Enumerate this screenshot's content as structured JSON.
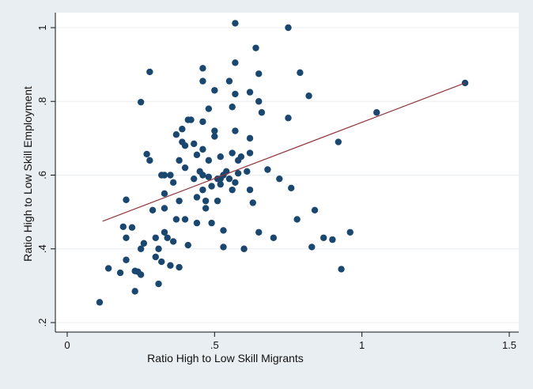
{
  "chart_data": {
    "type": "scatter",
    "xlabel": "Ratio High to Low Skill Migrants",
    "ylabel": "Ratio High to Low Skill Employment",
    "xlim": [
      0,
      1.5
    ],
    "ylim": [
      0.2,
      1.0
    ],
    "x_ticks": [
      0,
      0.5,
      1,
      1.5
    ],
    "x_tick_labels": [
      "0",
      ".5",
      "1",
      "1.5"
    ],
    "y_ticks": [
      0.2,
      0.4,
      0.6,
      0.8,
      1.0
    ],
    "y_tick_labels": [
      ".2",
      ".4",
      ".6",
      ".8",
      "1"
    ],
    "grid": "horizontal",
    "fit_line": {
      "x": [
        0.12,
        1.35
      ],
      "y": [
        0.475,
        0.85
      ]
    },
    "colors": {
      "points": "#1a476f",
      "fit_line": "#90353b",
      "plot_bg": "#ffffff",
      "outer_bg": "#e9eef2"
    },
    "points": [
      {
        "x": 0.11,
        "y": 0.255
      },
      {
        "x": 0.14,
        "y": 0.347
      },
      {
        "x": 0.18,
        "y": 0.335
      },
      {
        "x": 0.19,
        "y": 0.46
      },
      {
        "x": 0.2,
        "y": 0.43
      },
      {
        "x": 0.2,
        "y": 0.533
      },
      {
        "x": 0.2,
        "y": 0.37
      },
      {
        "x": 0.22,
        "y": 0.458
      },
      {
        "x": 0.23,
        "y": 0.285
      },
      {
        "x": 0.23,
        "y": 0.34
      },
      {
        "x": 0.24,
        "y": 0.338
      },
      {
        "x": 0.25,
        "y": 0.33
      },
      {
        "x": 0.25,
        "y": 0.4
      },
      {
        "x": 0.25,
        "y": 0.798
      },
      {
        "x": 0.26,
        "y": 0.415
      },
      {
        "x": 0.27,
        "y": 0.657
      },
      {
        "x": 0.28,
        "y": 0.88
      },
      {
        "x": 0.28,
        "y": 0.64
      },
      {
        "x": 0.29,
        "y": 0.505
      },
      {
        "x": 0.3,
        "y": 0.378
      },
      {
        "x": 0.3,
        "y": 0.43
      },
      {
        "x": 0.31,
        "y": 0.305
      },
      {
        "x": 0.31,
        "y": 0.4
      },
      {
        "x": 0.32,
        "y": 0.6
      },
      {
        "x": 0.32,
        "y": 0.365
      },
      {
        "x": 0.33,
        "y": 0.6
      },
      {
        "x": 0.33,
        "y": 0.55
      },
      {
        "x": 0.33,
        "y": 0.51
      },
      {
        "x": 0.33,
        "y": 0.445
      },
      {
        "x": 0.34,
        "y": 0.43
      },
      {
        "x": 0.35,
        "y": 0.6
      },
      {
        "x": 0.35,
        "y": 0.355
      },
      {
        "x": 0.36,
        "y": 0.58
      },
      {
        "x": 0.36,
        "y": 0.42
      },
      {
        "x": 0.37,
        "y": 0.71
      },
      {
        "x": 0.37,
        "y": 0.48
      },
      {
        "x": 0.38,
        "y": 0.64
      },
      {
        "x": 0.38,
        "y": 0.53
      },
      {
        "x": 0.38,
        "y": 0.35
      },
      {
        "x": 0.39,
        "y": 0.725
      },
      {
        "x": 0.39,
        "y": 0.69
      },
      {
        "x": 0.4,
        "y": 0.68
      },
      {
        "x": 0.4,
        "y": 0.62
      },
      {
        "x": 0.4,
        "y": 0.48
      },
      {
        "x": 0.41,
        "y": 0.75
      },
      {
        "x": 0.41,
        "y": 0.41
      },
      {
        "x": 0.42,
        "y": 0.75
      },
      {
        "x": 0.43,
        "y": 0.685
      },
      {
        "x": 0.43,
        "y": 0.59
      },
      {
        "x": 0.44,
        "y": 0.655
      },
      {
        "x": 0.44,
        "y": 0.54
      },
      {
        "x": 0.44,
        "y": 0.47
      },
      {
        "x": 0.45,
        "y": 0.61
      },
      {
        "x": 0.46,
        "y": 0.89
      },
      {
        "x": 0.46,
        "y": 0.855
      },
      {
        "x": 0.46,
        "y": 0.745
      },
      {
        "x": 0.46,
        "y": 0.67
      },
      {
        "x": 0.46,
        "y": 0.6
      },
      {
        "x": 0.46,
        "y": 0.56
      },
      {
        "x": 0.47,
        "y": 0.53
      },
      {
        "x": 0.47,
        "y": 0.51
      },
      {
        "x": 0.48,
        "y": 0.78
      },
      {
        "x": 0.48,
        "y": 0.64
      },
      {
        "x": 0.48,
        "y": 0.595
      },
      {
        "x": 0.49,
        "y": 0.57
      },
      {
        "x": 0.49,
        "y": 0.47
      },
      {
        "x": 0.5,
        "y": 0.83
      },
      {
        "x": 0.5,
        "y": 0.72
      },
      {
        "x": 0.5,
        "y": 0.705
      },
      {
        "x": 0.51,
        "y": 0.59
      },
      {
        "x": 0.51,
        "y": 0.53
      },
      {
        "x": 0.52,
        "y": 0.65
      },
      {
        "x": 0.52,
        "y": 0.59
      },
      {
        "x": 0.52,
        "y": 0.575
      },
      {
        "x": 0.53,
        "y": 0.6
      },
      {
        "x": 0.53,
        "y": 0.45
      },
      {
        "x": 0.53,
        "y": 0.405
      },
      {
        "x": 0.54,
        "y": 0.61
      },
      {
        "x": 0.55,
        "y": 0.59
      },
      {
        "x": 0.55,
        "y": 0.855
      },
      {
        "x": 0.56,
        "y": 0.56
      },
      {
        "x": 0.56,
        "y": 0.785
      },
      {
        "x": 0.56,
        "y": 0.66
      },
      {
        "x": 0.57,
        "y": 1.012
      },
      {
        "x": 0.57,
        "y": 0.905
      },
      {
        "x": 0.57,
        "y": 0.82
      },
      {
        "x": 0.57,
        "y": 0.72
      },
      {
        "x": 0.57,
        "y": 0.58
      },
      {
        "x": 0.58,
        "y": 0.64
      },
      {
        "x": 0.58,
        "y": 0.605
      },
      {
        "x": 0.59,
        "y": 0.65
      },
      {
        "x": 0.6,
        "y": 0.4
      },
      {
        "x": 0.61,
        "y": 0.61
      },
      {
        "x": 0.62,
        "y": 0.825
      },
      {
        "x": 0.62,
        "y": 0.7
      },
      {
        "x": 0.62,
        "y": 0.66
      },
      {
        "x": 0.62,
        "y": 0.56
      },
      {
        "x": 0.63,
        "y": 0.525
      },
      {
        "x": 0.64,
        "y": 0.945
      },
      {
        "x": 0.65,
        "y": 0.875
      },
      {
        "x": 0.65,
        "y": 0.8
      },
      {
        "x": 0.65,
        "y": 0.445
      },
      {
        "x": 0.66,
        "y": 0.77
      },
      {
        "x": 0.68,
        "y": 0.615
      },
      {
        "x": 0.7,
        "y": 0.43
      },
      {
        "x": 0.72,
        "y": 0.59
      },
      {
        "x": 0.75,
        "y": 1.0
      },
      {
        "x": 0.75,
        "y": 0.755
      },
      {
        "x": 0.76,
        "y": 0.565
      },
      {
        "x": 0.78,
        "y": 0.48
      },
      {
        "x": 0.79,
        "y": 0.878
      },
      {
        "x": 0.82,
        "y": 0.815
      },
      {
        "x": 0.83,
        "y": 0.405
      },
      {
        "x": 0.84,
        "y": 0.505
      },
      {
        "x": 0.87,
        "y": 0.43
      },
      {
        "x": 0.9,
        "y": 0.425
      },
      {
        "x": 0.92,
        "y": 0.69
      },
      {
        "x": 0.93,
        "y": 0.345
      },
      {
        "x": 0.96,
        "y": 0.445
      },
      {
        "x": 1.05,
        "y": 0.77
      },
      {
        "x": 1.35,
        "y": 0.85
      }
    ]
  }
}
